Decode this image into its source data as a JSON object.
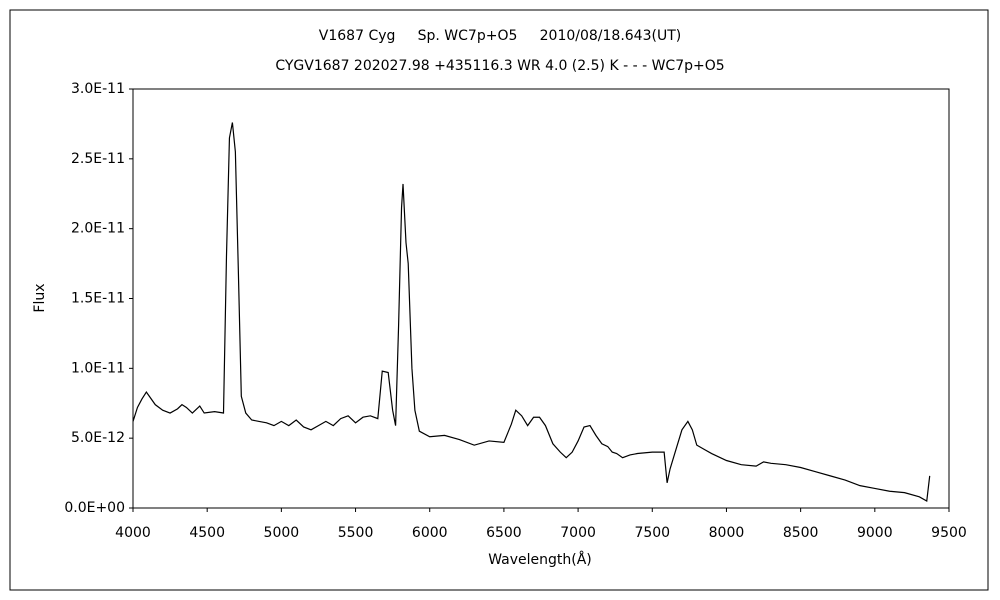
{
  "chart_data": {
    "type": "line",
    "title": "V1687 Cyg     Sp. WC7p+O5     2010/08/18.643(UT)",
    "subtitle": "CYGV1687 202027.98 +435116.3 WR 4.0 (2.5) K - - - WC7p+O5",
    "x_label": "Wavelength(Å)",
    "y_label": "Flux",
    "xlim": [
      4000,
      9500
    ],
    "xticks": [
      4000,
      4500,
      5000,
      5500,
      6000,
      6500,
      7000,
      7500,
      8000,
      8500,
      9000,
      9500
    ],
    "ylim": [
      0,
      3e-11
    ],
    "yticks": [
      {
        "value": 0,
        "label": "0.0E+00"
      },
      {
        "value": 5e-12,
        "label": "5.0E-12"
      },
      {
        "value": 1e-11,
        "label": "1.0E-11"
      },
      {
        "value": 1.5e-11,
        "label": "1.5E-11"
      },
      {
        "value": 2e-11,
        "label": "2.0E-11"
      },
      {
        "value": 2.5e-11,
        "label": "2.5E-11"
      },
      {
        "value": 3e-11,
        "label": "3.0E-11"
      }
    ],
    "grid": false,
    "color": "#000000",
    "x": [
      4000,
      4030,
      4060,
      4090,
      4110,
      4150,
      4200,
      4250,
      4300,
      4330,
      4360,
      4400,
      4450,
      4480,
      4550,
      4610,
      4630,
      4650,
      4670,
      4690,
      4710,
      4730,
      4760,
      4800,
      4850,
      4900,
      4950,
      5000,
      5050,
      5100,
      5150,
      5200,
      5250,
      5300,
      5350,
      5400,
      5450,
      5500,
      5550,
      5600,
      5650,
      5680,
      5720,
      5750,
      5770,
      5790,
      5810,
      5820,
      5840,
      5855,
      5880,
      5900,
      5930,
      6000,
      6100,
      6200,
      6300,
      6400,
      6500,
      6550,
      6580,
      6620,
      6660,
      6700,
      6740,
      6780,
      6830,
      6880,
      6920,
      6960,
      7000,
      7040,
      7080,
      7120,
      7160,
      7200,
      7230,
      7260,
      7300,
      7350,
      7400,
      7500,
      7580,
      7600,
      7620,
      7660,
      7700,
      7740,
      7770,
      7800,
      7850,
      7900,
      8000,
      8100,
      8200,
      8250,
      8300,
      8400,
      8500,
      8600,
      8700,
      8800,
      8900,
      9000,
      9100,
      9200,
      9300,
      9350,
      9370
    ],
    "values": [
      6.2e-12,
      7.2e-12,
      7.8e-12,
      8.3e-12,
      8e-12,
      7.4e-12,
      7e-12,
      6.8e-12,
      7.1e-12,
      7.4e-12,
      7.2e-12,
      6.8e-12,
      7.3e-12,
      6.8e-12,
      6.9e-12,
      6.8e-12,
      1.8e-11,
      2.65e-11,
      2.76e-11,
      2.55e-11,
      1.7e-11,
      8e-12,
      6.8e-12,
      6.3e-12,
      6.2e-12,
      6.1e-12,
      5.9e-12,
      6.2e-12,
      5.9e-12,
      6.3e-12,
      5.8e-12,
      5.6e-12,
      5.9e-12,
      6.2e-12,
      5.9e-12,
      6.4e-12,
      6.6e-12,
      6.1e-12,
      6.5e-12,
      6.6e-12,
      6.4e-12,
      9.8e-12,
      9.7e-12,
      7e-12,
      5.9e-12,
      1.3e-11,
      2.15e-11,
      2.32e-11,
      1.9e-11,
      1.75e-11,
      1e-11,
      7e-12,
      5.5e-12,
      5.1e-12,
      5.2e-12,
      4.9e-12,
      4.5e-12,
      4.8e-12,
      4.7e-12,
      6e-12,
      7e-12,
      6.6e-12,
      5.9e-12,
      6.5e-12,
      6.5e-12,
      5.9e-12,
      4.6e-12,
      4e-12,
      3.6e-12,
      4e-12,
      4.8e-12,
      5.8e-12,
      5.9e-12,
      5.2e-12,
      4.6e-12,
      4.4e-12,
      4e-12,
      3.9e-12,
      3.6e-12,
      3.8e-12,
      3.9e-12,
      4e-12,
      4e-12,
      1.8e-12,
      2.8e-12,
      4.2e-12,
      5.6e-12,
      6.2e-12,
      5.6e-12,
      4.5e-12,
      4.2e-12,
      3.9e-12,
      3.4e-12,
      3.1e-12,
      3e-12,
      3.3e-12,
      3.2e-12,
      3.1e-12,
      2.9e-12,
      2.6e-12,
      2.3e-12,
      2e-12,
      1.6e-12,
      1.4e-12,
      1.2e-12,
      1.1e-12,
      8e-13,
      5e-13,
      2.3e-12
    ]
  }
}
